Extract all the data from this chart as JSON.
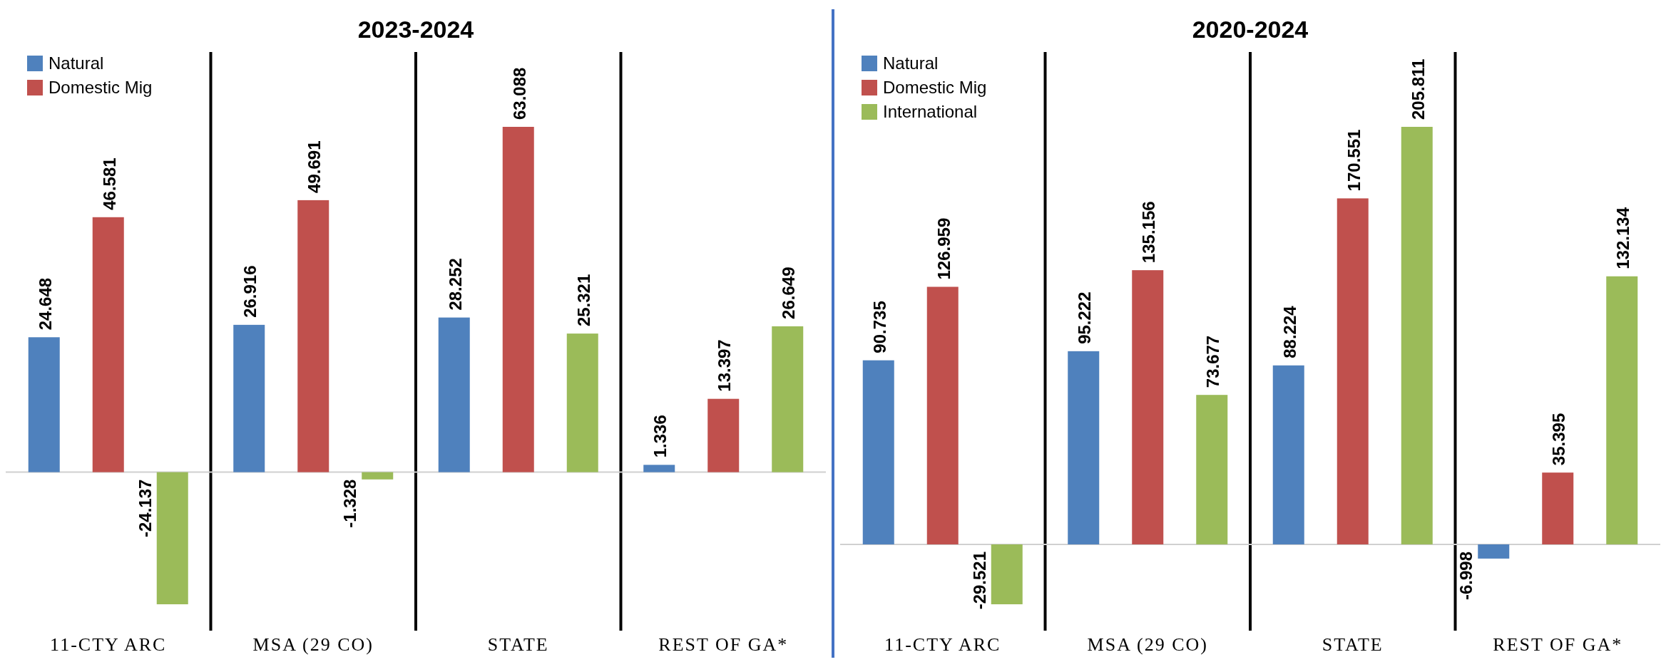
{
  "chart_data": [
    {
      "type": "bar",
      "title": "2023-2024",
      "categories": [
        "11-CTY ARC",
        "MSA (29 CO)",
        "STATE",
        "REST OF GA*"
      ],
      "data_labels": true,
      "legend": "top left",
      "series": [
        {
          "name": "Natural",
          "color": "#4f81bd",
          "values": [
            24.648,
            26.916,
            28.252,
            1.336
          ]
        },
        {
          "name": "Domestic Mig",
          "color": "#c0504d",
          "values": [
            46.581,
            49.691,
            63.088,
            13.397
          ]
        },
        {
          "color": "#9bbb59",
          "values": [
            -24.137,
            -1.328,
            25.321,
            26.649
          ]
        }
      ]
    },
    {
      "type": "bar",
      "title": "2020-2024",
      "categories": [
        "11-CTY ARC",
        "MSA (29 CO)",
        "STATE",
        "REST OF GA*"
      ],
      "data_labels": true,
      "legend": "top left",
      "series": [
        {
          "name": "Natural",
          "color": "#4f81bd",
          "values": [
            90.735,
            95.222,
            88.224,
            -6.998
          ]
        },
        {
          "name": "Domestic Mig",
          "color": "#c0504d",
          "values": [
            126.959,
            135.156,
            170.551,
            35.395
          ]
        },
        {
          "name": "International",
          "color": "#9bbb59",
          "values": [
            -29.521,
            73.677,
            205.811,
            132.134
          ]
        }
      ]
    }
  ]
}
